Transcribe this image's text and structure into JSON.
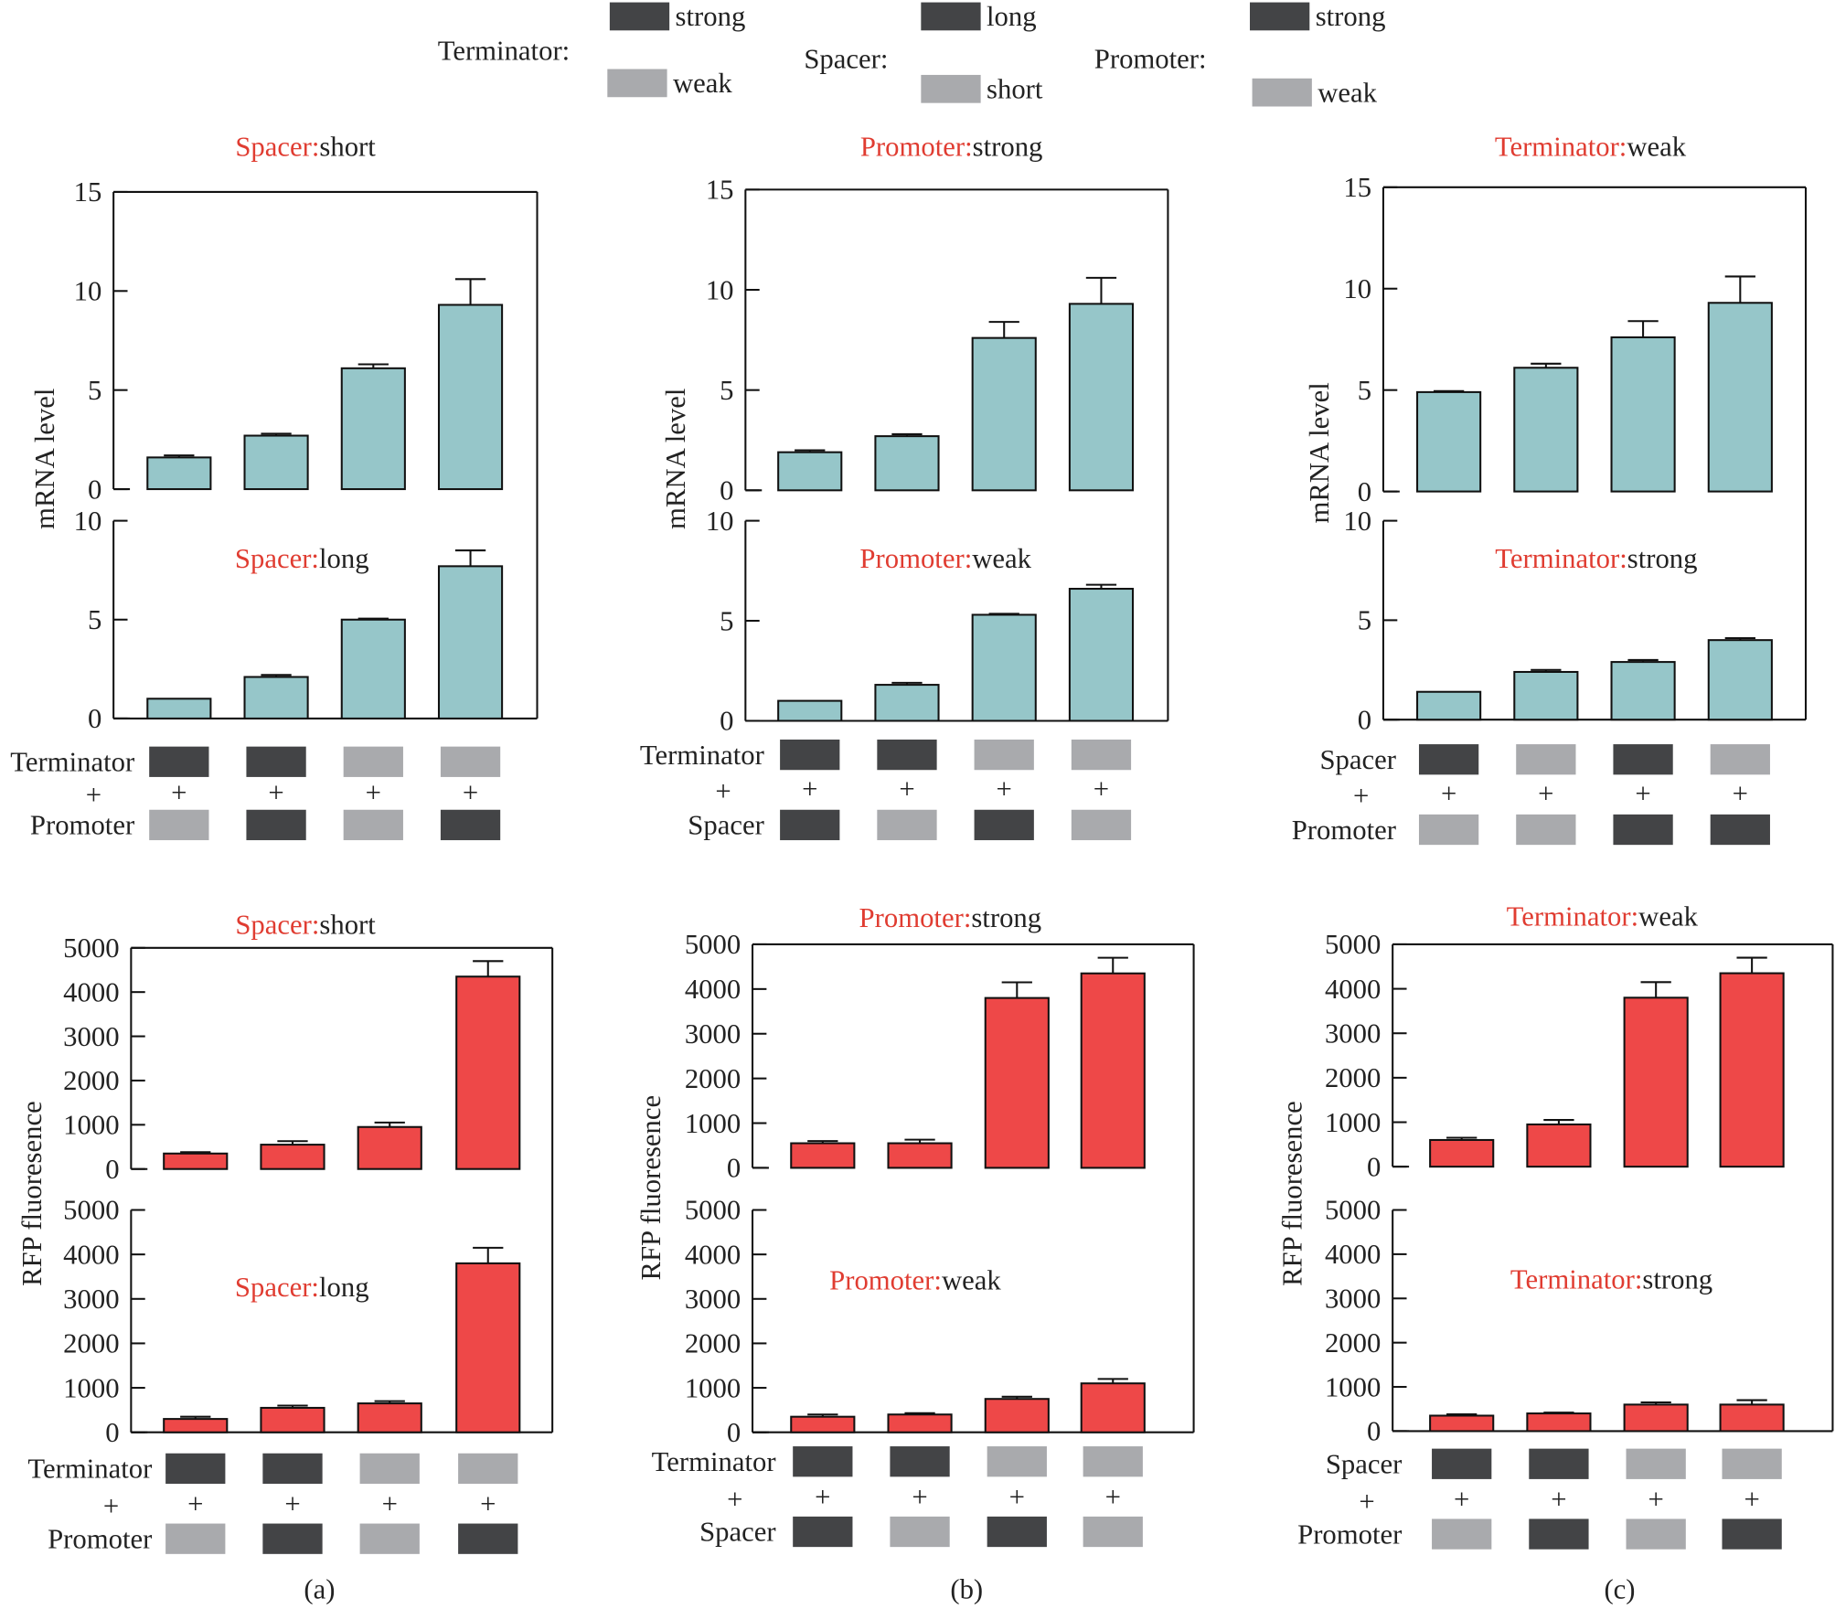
{
  "colors": {
    "mrna_bar": "#96c6c9",
    "rfp_bar": "#ee4848",
    "dark_swatch": "#434446",
    "light_swatch": "#a9aaad",
    "title_key": "#e03c31"
  },
  "legend": [
    {
      "label": "Terminator:",
      "items": [
        {
          "text": "strong",
          "shade": "dark"
        },
        {
          "text": "weak",
          "shade": "light"
        }
      ]
    },
    {
      "label": "Spacer:",
      "items": [
        {
          "text": "long",
          "shade": "dark"
        },
        {
          "text": "short",
          "shade": "light"
        }
      ]
    },
    {
      "label": "Promoter:",
      "items": [
        {
          "text": "strong",
          "shade": "dark"
        },
        {
          "text": "weak",
          "shade": "light"
        }
      ]
    }
  ],
  "plus_sign": "+",
  "chart_data": [
    {
      "type": "bar",
      "caption": "",
      "ylabel": "mRNA level",
      "row1": {
        "label": "Terminator",
        "shades": [
          "dark",
          "dark",
          "light",
          "light"
        ]
      },
      "row2": {
        "label": "Promoter",
        "shades": [
          "light",
          "dark",
          "light",
          "dark"
        ]
      },
      "subplots": [
        {
          "title_key": "Spacer:",
          "title_value": "short",
          "ylim": [
            0,
            15
          ],
          "ticks": [
            0,
            5,
            10,
            15
          ],
          "values": [
            1.6,
            2.7,
            6.1,
            9.3
          ],
          "errors": [
            0.1,
            0.1,
            0.2,
            1.3
          ]
        },
        {
          "title_key": "Spacer:",
          "title_value": "long",
          "ylim": [
            0,
            10
          ],
          "ticks": [
            0,
            5,
            10
          ],
          "values": [
            1.0,
            2.1,
            5.0,
            7.7
          ],
          "errors": [
            0,
            0.1,
            0.05,
            0.8
          ]
        }
      ]
    },
    {
      "type": "bar",
      "caption": "",
      "ylabel": "mRNA level",
      "row1": {
        "label": "Terminator",
        "shades": [
          "dark",
          "dark",
          "light",
          "light"
        ]
      },
      "row2": {
        "label": "Spacer",
        "shades": [
          "dark",
          "light",
          "dark",
          "light"
        ]
      },
      "subplots": [
        {
          "title_key": "Promoter:",
          "title_value": "strong",
          "ylim": [
            0,
            15
          ],
          "ticks": [
            0,
            5,
            10,
            15
          ],
          "values": [
            1.9,
            2.7,
            7.6,
            9.3
          ],
          "errors": [
            0.1,
            0.1,
            0.8,
            1.3
          ]
        },
        {
          "title_key": "Promoter:",
          "title_value": "weak",
          "ylim": [
            0,
            10
          ],
          "ticks": [
            0,
            5,
            10
          ],
          "values": [
            1.0,
            1.8,
            5.3,
            6.6
          ],
          "errors": [
            0,
            0.1,
            0.05,
            0.2
          ]
        }
      ]
    },
    {
      "type": "bar",
      "caption": "",
      "ylabel": "mRNA level",
      "row1": {
        "label": "Spacer",
        "shades": [
          "dark",
          "light",
          "dark",
          "light"
        ]
      },
      "row2": {
        "label": "Promoter",
        "shades": [
          "light",
          "light",
          "dark",
          "dark"
        ]
      },
      "subplots": [
        {
          "title_key": "Terminator:",
          "title_value": "weak",
          "ylim": [
            0,
            15
          ],
          "ticks": [
            0,
            5,
            10,
            15
          ],
          "values": [
            4.9,
            6.1,
            7.6,
            9.3
          ],
          "errors": [
            0.05,
            0.2,
            0.8,
            1.3
          ]
        },
        {
          "title_key": "Terminator:",
          "title_value": "strong",
          "ylim": [
            0,
            10
          ],
          "ticks": [
            0,
            5,
            10
          ],
          "values": [
            1.4,
            2.4,
            2.9,
            4.0
          ],
          "errors": [
            0,
            0.1,
            0.1,
            0.1
          ]
        }
      ]
    },
    {
      "type": "bar",
      "caption": "(a)",
      "ylabel": "RFP fluoresence",
      "row1": {
        "label": "Terminator",
        "shades": [
          "dark",
          "dark",
          "light",
          "light"
        ]
      },
      "row2": {
        "label": "Promoter",
        "shades": [
          "light",
          "dark",
          "light",
          "dark"
        ]
      },
      "subplots": [
        {
          "title_key": "Spacer:",
          "title_value": "short",
          "ylim": [
            0,
            5000
          ],
          "ticks": [
            0,
            1000,
            2000,
            3000,
            4000,
            5000
          ],
          "values": [
            350,
            550,
            950,
            4350
          ],
          "errors": [
            30,
            80,
            100,
            350
          ]
        },
        {
          "title_key": "Spacer:",
          "title_value": "long",
          "ylim": [
            0,
            5000
          ],
          "ticks": [
            0,
            1000,
            2000,
            3000,
            4000,
            5000
          ],
          "values": [
            300,
            550,
            650,
            3800
          ],
          "errors": [
            50,
            50,
            50,
            350
          ]
        }
      ]
    },
    {
      "type": "bar",
      "caption": "(b)",
      "ylabel": "RFP fluoresence",
      "row1": {
        "label": "Terminator",
        "shades": [
          "dark",
          "dark",
          "light",
          "light"
        ]
      },
      "row2": {
        "label": "Spacer",
        "shades": [
          "dark",
          "light",
          "dark",
          "light"
        ]
      },
      "subplots": [
        {
          "title_key": "Promoter:",
          "title_value": "strong",
          "ylim": [
            0,
            5000
          ],
          "ticks": [
            0,
            1000,
            2000,
            3000,
            4000,
            5000
          ],
          "values": [
            550,
            550,
            3800,
            4350
          ],
          "errors": [
            50,
            80,
            350,
            350
          ]
        },
        {
          "title_key": "Promoter:",
          "title_value": "weak",
          "ylim": [
            0,
            5000
          ],
          "ticks": [
            0,
            1000,
            2000,
            3000,
            4000,
            5000
          ],
          "values": [
            350,
            400,
            750,
            1100
          ],
          "errors": [
            50,
            30,
            50,
            100
          ]
        }
      ]
    },
    {
      "type": "bar",
      "caption": "(c)",
      "ylabel": "RFP fluoresence",
      "row1": {
        "label": "Spacer",
        "shades": [
          "dark",
          "dark",
          "light",
          "light"
        ]
      },
      "row2": {
        "label": "Promoter",
        "shades": [
          "light",
          "dark",
          "light",
          "dark"
        ]
      },
      "subplots": [
        {
          "title_key": "Terminator:",
          "title_value": "weak",
          "ylim": [
            0,
            5000
          ],
          "ticks": [
            0,
            1000,
            2000,
            3000,
            4000,
            5000
          ],
          "values": [
            600,
            950,
            3800,
            4350
          ],
          "errors": [
            50,
            100,
            350,
            350
          ]
        },
        {
          "title_key": "Terminator:",
          "title_value": "strong",
          "ylim": [
            0,
            5000
          ],
          "ticks": [
            0,
            1000,
            2000,
            3000,
            4000,
            5000
          ],
          "values": [
            350,
            400,
            600,
            600
          ],
          "errors": [
            30,
            20,
            50,
            100
          ]
        }
      ]
    }
  ]
}
